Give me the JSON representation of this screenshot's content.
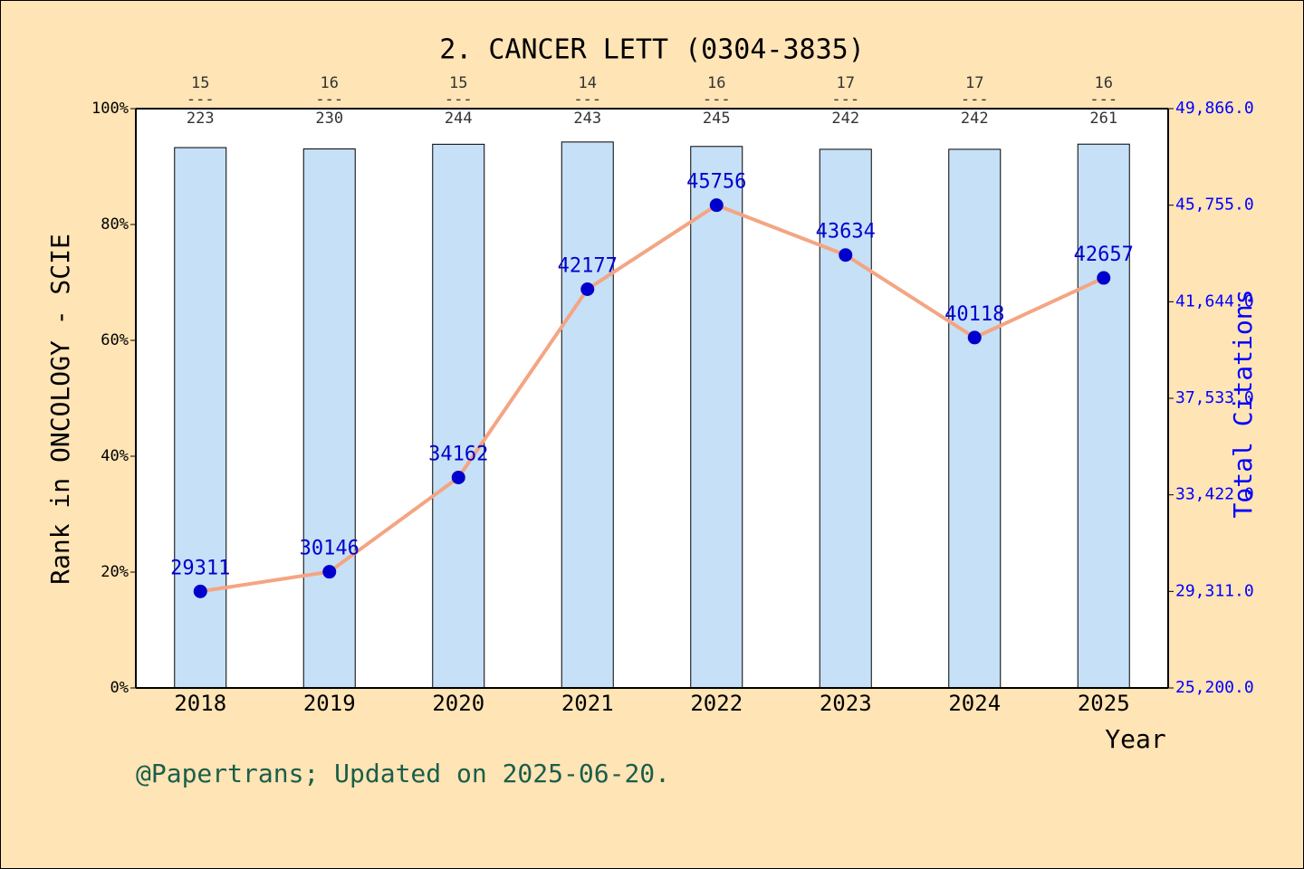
{
  "chart_data": {
    "type": "bar-line",
    "title": "2. CANCER LETT (0304-3835)",
    "x_label": "Year",
    "y_label": "Rank in ONCOLOGY - SCIE",
    "y2_label": "Total Citations",
    "footer": "@Papertrans; Updated on 2025-06-20.",
    "categories": [
      "2018",
      "2019",
      "2020",
      "2021",
      "2022",
      "2023",
      "2024",
      "2025"
    ],
    "ranks": [
      15,
      16,
      15,
      14,
      16,
      17,
      17,
      16
    ],
    "totals": [
      223,
      230,
      244,
      243,
      245,
      242,
      242,
      261
    ],
    "rank_separator": "---",
    "series": [
      {
        "name": "Rank in ONCOLOGY - SCIE",
        "type": "bar",
        "color": "#c6e0f7",
        "values": [
          93.27,
          93.04,
          93.85,
          94.24,
          93.47,
          92.98,
          92.98,
          93.87
        ]
      },
      {
        "name": "Total Citations",
        "type": "line",
        "axis": "y2",
        "color": "#f4a582",
        "marker_color": "#0000cd",
        "values": [
          29311,
          30146,
          34162,
          42177,
          45756,
          43634,
          40118,
          42657
        ]
      }
    ],
    "ylim": [
      0,
      100
    ],
    "yticks": [
      {
        "value": 0,
        "label": "0%"
      },
      {
        "value": 20,
        "label": "20%"
      },
      {
        "value": 40,
        "label": "40%"
      },
      {
        "value": 60,
        "label": "60%"
      },
      {
        "value": 80,
        "label": "80%"
      },
      {
        "value": 100,
        "label": "100%"
      }
    ],
    "y2lim": [
      25200,
      49866
    ],
    "y2ticks": [
      {
        "value": 25200,
        "label": "25,200.0"
      },
      {
        "value": 29311,
        "label": "29,311.0"
      },
      {
        "value": 33422,
        "label": "33,422.0"
      },
      {
        "value": 37533,
        "label": "37,533.0"
      },
      {
        "value": 41644,
        "label": "41,644.0"
      },
      {
        "value": 45755,
        "label": "45,755.0"
      },
      {
        "value": 49866,
        "label": "49,866.0"
      }
    ]
  }
}
